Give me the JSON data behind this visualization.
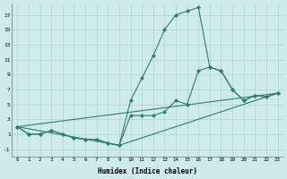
{
  "xlabel": "Humidex (Indice chaleur)",
  "background_color": "#ceeaea",
  "line_color": "#2e7d6e",
  "grid_color": "#aed4d4",
  "xlim": [
    -0.5,
    23.5
  ],
  "ylim": [
    -2.0,
    18.5
  ],
  "xticks": [
    0,
    1,
    2,
    3,
    4,
    5,
    6,
    7,
    8,
    9,
    10,
    11,
    12,
    13,
    14,
    15,
    16,
    17,
    18,
    19,
    20,
    21,
    22,
    23
  ],
  "yticks": [
    -1,
    1,
    3,
    5,
    7,
    9,
    11,
    13,
    15,
    17
  ],
  "series": [
    {
      "x": [
        0,
        1,
        2,
        3,
        4,
        5,
        6,
        7,
        8,
        9,
        10,
        11,
        12,
        13,
        14,
        15,
        16,
        17,
        18,
        19,
        20,
        21,
        22,
        23
      ],
      "y": [
        2,
        1,
        1,
        1.5,
        1,
        0.5,
        0.3,
        0.3,
        -0.2,
        -0.5,
        5.5,
        8.5,
        11.5,
        15,
        17,
        17.5,
        18,
        10,
        9.5,
        7,
        5.5,
        6.2,
        6,
        6.5
      ],
      "marker": true
    },
    {
      "x": [
        0,
        1,
        2,
        3,
        4,
        5,
        6,
        7,
        8,
        9,
        10,
        11,
        12,
        13,
        14,
        15,
        16,
        17,
        18,
        19,
        20,
        21,
        22,
        23
      ],
      "y": [
        2,
        1,
        1,
        1.5,
        1,
        0.5,
        0.3,
        0.3,
        -0.2,
        -0.5,
        3.5,
        3.5,
        3.5,
        4,
        5.5,
        5.0,
        9.5,
        10,
        9.5,
        7,
        5.5,
        6.2,
        6,
        6.5
      ],
      "marker": true
    },
    {
      "x": [
        0,
        9,
        23
      ],
      "y": [
        2,
        -0.5,
        6.5
      ],
      "marker": false
    },
    {
      "x": [
        0,
        23
      ],
      "y": [
        2,
        6.5
      ],
      "marker": false
    }
  ]
}
